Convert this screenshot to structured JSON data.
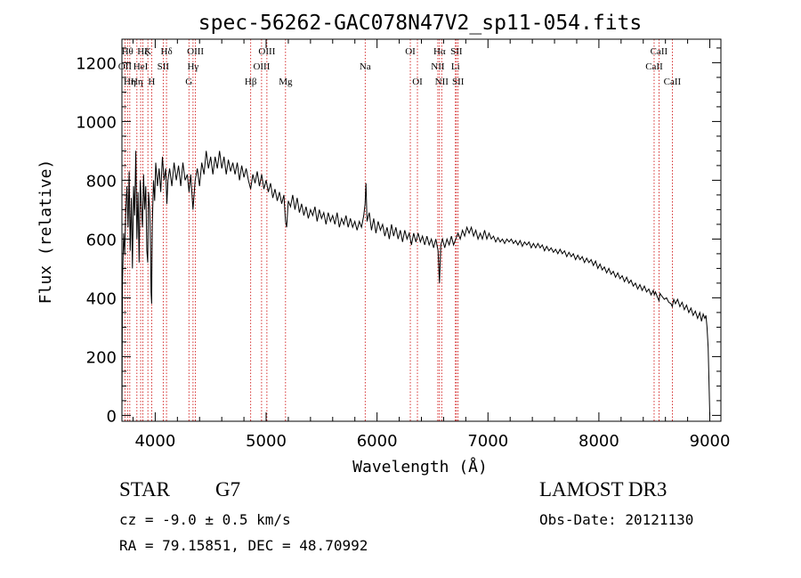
{
  "chart_data": {
    "type": "line",
    "title": "spec-56262-GAC078N47V2_sp11-054.fits",
    "xlabel": "Wavelength (Å)",
    "ylabel": "Flux (relative)",
    "xlim": [
      3700,
      9100
    ],
    "ylim": [
      -20,
      1280
    ],
    "xticks": [
      4000,
      5000,
      6000,
      7000,
      8000,
      9000
    ],
    "yticks": [
      0,
      200,
      400,
      600,
      800,
      1000,
      1200
    ],
    "spectrum": [
      [
        3700,
        0
      ],
      [
        3705,
        450
      ],
      [
        3715,
        620
      ],
      [
        3725,
        550
      ],
      [
        3735,
        700
      ],
      [
        3745,
        780
      ],
      [
        3755,
        640
      ],
      [
        3765,
        830
      ],
      [
        3775,
        560
      ],
      [
        3785,
        740
      ],
      [
        3795,
        500
      ],
      [
        3805,
        780
      ],
      [
        3815,
        680
      ],
      [
        3825,
        900
      ],
      [
        3835,
        600
      ],
      [
        3845,
        760
      ],
      [
        3855,
        520
      ],
      [
        3865,
        800
      ],
      [
        3875,
        720
      ],
      [
        3885,
        640
      ],
      [
        3895,
        820
      ],
      [
        3905,
        700
      ],
      [
        3915,
        780
      ],
      [
        3925,
        560
      ],
      [
        3933,
        520
      ],
      [
        3940,
        760
      ],
      [
        3950,
        700
      ],
      [
        3958,
        560
      ],
      [
        3962,
        420
      ],
      [
        3968,
        380
      ],
      [
        3974,
        650
      ],
      [
        3985,
        800
      ],
      [
        3995,
        730
      ],
      [
        4005,
        860
      ],
      [
        4020,
        780
      ],
      [
        4035,
        840
      ],
      [
        4050,
        760
      ],
      [
        4065,
        880
      ],
      [
        4080,
        800
      ],
      [
        4095,
        840
      ],
      [
        4105,
        720
      ],
      [
        4115,
        800
      ],
      [
        4130,
        840
      ],
      [
        4150,
        780
      ],
      [
        4170,
        860
      ],
      [
        4190,
        800
      ],
      [
        4210,
        850
      ],
      [
        4230,
        780
      ],
      [
        4250,
        860
      ],
      [
        4270,
        800
      ],
      [
        4290,
        820
      ],
      [
        4305,
        760
      ],
      [
        4320,
        820
      ],
      [
        4340,
        700
      ],
      [
        4360,
        800
      ],
      [
        4380,
        840
      ],
      [
        4400,
        780
      ],
      [
        4420,
        860
      ],
      [
        4440,
        820
      ],
      [
        4460,
        900
      ],
      [
        4480,
        840
      ],
      [
        4500,
        880
      ],
      [
        4520,
        820
      ],
      [
        4540,
        880
      ],
      [
        4560,
        840
      ],
      [
        4580,
        900
      ],
      [
        4600,
        840
      ],
      [
        4620,
        880
      ],
      [
        4640,
        820
      ],
      [
        4660,
        870
      ],
      [
        4680,
        830
      ],
      [
        4700,
        860
      ],
      [
        4720,
        820
      ],
      [
        4740,
        860
      ],
      [
        4760,
        800
      ],
      [
        4780,
        850
      ],
      [
        4800,
        810
      ],
      [
        4820,
        840
      ],
      [
        4840,
        800
      ],
      [
        4860,
        770
      ],
      [
        4880,
        820
      ],
      [
        4900,
        790
      ],
      [
        4920,
        830
      ],
      [
        4940,
        780
      ],
      [
        4960,
        820
      ],
      [
        4980,
        770
      ],
      [
        5000,
        800
      ],
      [
        5020,
        760
      ],
      [
        5040,
        790
      ],
      [
        5060,
        740
      ],
      [
        5080,
        770
      ],
      [
        5100,
        730
      ],
      [
        5120,
        760
      ],
      [
        5140,
        720
      ],
      [
        5160,
        750
      ],
      [
        5175,
        660
      ],
      [
        5185,
        640
      ],
      [
        5200,
        730
      ],
      [
        5220,
        710
      ],
      [
        5240,
        750
      ],
      [
        5260,
        700
      ],
      [
        5280,
        740
      ],
      [
        5300,
        690
      ],
      [
        5320,
        720
      ],
      [
        5340,
        680
      ],
      [
        5360,
        710
      ],
      [
        5380,
        670
      ],
      [
        5400,
        700
      ],
      [
        5420,
        680
      ],
      [
        5440,
        710
      ],
      [
        5460,
        660
      ],
      [
        5480,
        700
      ],
      [
        5500,
        670
      ],
      [
        5520,
        690
      ],
      [
        5540,
        650
      ],
      [
        5560,
        690
      ],
      [
        5580,
        660
      ],
      [
        5600,
        680
      ],
      [
        5620,
        650
      ],
      [
        5640,
        690
      ],
      [
        5660,
        640
      ],
      [
        5680,
        670
      ],
      [
        5700,
        650
      ],
      [
        5720,
        680
      ],
      [
        5740,
        640
      ],
      [
        5760,
        670
      ],
      [
        5780,
        640
      ],
      [
        5800,
        660
      ],
      [
        5820,
        630
      ],
      [
        5840,
        660
      ],
      [
        5860,
        640
      ],
      [
        5880,
        680
      ],
      [
        5892,
        720
      ],
      [
        5900,
        790
      ],
      [
        5910,
        660
      ],
      [
        5930,
        690
      ],
      [
        5950,
        630
      ],
      [
        5970,
        670
      ],
      [
        5990,
        620
      ],
      [
        6010,
        660
      ],
      [
        6030,
        630
      ],
      [
        6050,
        650
      ],
      [
        6070,
        610
      ],
      [
        6090,
        640
      ],
      [
        6110,
        600
      ],
      [
        6130,
        650
      ],
      [
        6150,
        610
      ],
      [
        6170,
        640
      ],
      [
        6190,
        600
      ],
      [
        6210,
        630
      ],
      [
        6230,
        590
      ],
      [
        6250,
        630
      ],
      [
        6270,
        600
      ],
      [
        6290,
        620
      ],
      [
        6310,
        580
      ],
      [
        6330,
        620
      ],
      [
        6350,
        590
      ],
      [
        6370,
        620
      ],
      [
        6390,
        590
      ],
      [
        6410,
        610
      ],
      [
        6430,
        580
      ],
      [
        6450,
        610
      ],
      [
        6470,
        580
      ],
      [
        6490,
        600
      ],
      [
        6510,
        570
      ],
      [
        6530,
        600
      ],
      [
        6550,
        560
      ],
      [
        6563,
        450
      ],
      [
        6575,
        580
      ],
      [
        6590,
        600
      ],
      [
        6610,
        570
      ],
      [
        6630,
        600
      ],
      [
        6650,
        580
      ],
      [
        6670,
        610
      ],
      [
        6690,
        580
      ],
      [
        6710,
        600
      ],
      [
        6730,
        620
      ],
      [
        6750,
        600
      ],
      [
        6770,
        630
      ],
      [
        6790,
        610
      ],
      [
        6810,
        640
      ],
      [
        6830,
        620
      ],
      [
        6850,
        640
      ],
      [
        6870,
        610
      ],
      [
        6890,
        630
      ],
      [
        6910,
        600
      ],
      [
        6930,
        620
      ],
      [
        6950,
        600
      ],
      [
        6970,
        630
      ],
      [
        6990,
        600
      ],
      [
        7010,
        620
      ],
      [
        7030,
        600
      ],
      [
        7050,
        610
      ],
      [
        7070,
        590
      ],
      [
        7090,
        605
      ],
      [
        7110,
        590
      ],
      [
        7130,
        600
      ],
      [
        7150,
        585
      ],
      [
        7170,
        600
      ],
      [
        7190,
        590
      ],
      [
        7210,
        600
      ],
      [
        7230,
        585
      ],
      [
        7250,
        595
      ],
      [
        7270,
        580
      ],
      [
        7290,
        595
      ],
      [
        7310,
        575
      ],
      [
        7330,
        590
      ],
      [
        7350,
        580
      ],
      [
        7370,
        590
      ],
      [
        7390,
        570
      ],
      [
        7410,
        585
      ],
      [
        7430,
        570
      ],
      [
        7450,
        585
      ],
      [
        7470,
        570
      ],
      [
        7490,
        580
      ],
      [
        7510,
        560
      ],
      [
        7530,
        575
      ],
      [
        7550,
        560
      ],
      [
        7570,
        570
      ],
      [
        7590,
        555
      ],
      [
        7610,
        565
      ],
      [
        7630,
        550
      ],
      [
        7650,
        565
      ],
      [
        7670,
        550
      ],
      [
        7690,
        560
      ],
      [
        7710,
        540
      ],
      [
        7730,
        555
      ],
      [
        7750,
        540
      ],
      [
        7770,
        550
      ],
      [
        7790,
        530
      ],
      [
        7810,
        545
      ],
      [
        7830,
        530
      ],
      [
        7850,
        540
      ],
      [
        7870,
        520
      ],
      [
        7890,
        535
      ],
      [
        7910,
        520
      ],
      [
        7930,
        530
      ],
      [
        7950,
        510
      ],
      [
        7970,
        525
      ],
      [
        7990,
        500
      ],
      [
        8010,
        515
      ],
      [
        8030,
        495
      ],
      [
        8050,
        505
      ],
      [
        8070,
        485
      ],
      [
        8090,
        500
      ],
      [
        8110,
        480
      ],
      [
        8130,
        490
      ],
      [
        8150,
        470
      ],
      [
        8170,
        485
      ],
      [
        8190,
        465
      ],
      [
        8210,
        475
      ],
      [
        8230,
        455
      ],
      [
        8250,
        470
      ],
      [
        8270,
        450
      ],
      [
        8290,
        460
      ],
      [
        8310,
        440
      ],
      [
        8330,
        450
      ],
      [
        8350,
        430
      ],
      [
        8370,
        445
      ],
      [
        8390,
        425
      ],
      [
        8410,
        440
      ],
      [
        8430,
        420
      ],
      [
        8450,
        430
      ],
      [
        8470,
        410
      ],
      [
        8490,
        425
      ],
      [
        8500,
        410
      ],
      [
        8510,
        420
      ],
      [
        8530,
        400
      ],
      [
        8542,
        390
      ],
      [
        8550,
        415
      ],
      [
        8570,
        405
      ],
      [
        8590,
        395
      ],
      [
        8610,
        400
      ],
      [
        8630,
        385
      ],
      [
        8650,
        380
      ],
      [
        8662,
        370
      ],
      [
        8675,
        395
      ],
      [
        8690,
        380
      ],
      [
        8710,
        395
      ],
      [
        8730,
        370
      ],
      [
        8750,
        385
      ],
      [
        8770,
        360
      ],
      [
        8790,
        375
      ],
      [
        8810,
        350
      ],
      [
        8830,
        365
      ],
      [
        8850,
        340
      ],
      [
        8870,
        355
      ],
      [
        8890,
        330
      ],
      [
        8910,
        350
      ],
      [
        8925,
        320
      ],
      [
        8940,
        345
      ],
      [
        8955,
        330
      ],
      [
        8965,
        340
      ],
      [
        8975,
        300
      ],
      [
        8985,
        230
      ],
      [
        8995,
        80
      ],
      [
        9000,
        0
      ]
    ],
    "lines": [
      {
        "w": 3727,
        "label": "OII",
        "row": 2
      },
      {
        "w": 3750,
        "label": "Hθ",
        "row": 1
      },
      {
        "w": 3771,
        "label": "Hη",
        "row": 3
      },
      {
        "w": 3835,
        "label": "Hη",
        "row": 3
      },
      {
        "w": 3869,
        "label": "HeI",
        "row": 2
      },
      {
        "w": 3889,
        "label": "Hζ",
        "row": 1
      },
      {
        "w": 3934,
        "label": "K",
        "row": 1
      },
      {
        "w": 3968,
        "label": "H",
        "row": 3
      },
      {
        "w": 4072,
        "label": "SII",
        "row": 2
      },
      {
        "w": 4102,
        "label": "Hδ",
        "row": 1
      },
      {
        "w": 4304,
        "label": "G",
        "row": 3
      },
      {
        "w": 4341,
        "label": "Hγ",
        "row": 2
      },
      {
        "w": 4363,
        "label": "OIII",
        "row": 1
      },
      {
        "w": 4861,
        "label": "Hβ",
        "row": 3
      },
      {
        "w": 4959,
        "label": "OIII",
        "row": 2
      },
      {
        "w": 5007,
        "label": "OIII",
        "row": 1
      },
      {
        "w": 5175,
        "label": "Mg",
        "row": 3
      },
      {
        "w": 5893,
        "label": "Na",
        "row": 2
      },
      {
        "w": 6300,
        "label": "OI",
        "row": 1
      },
      {
        "w": 6364,
        "label": "OI",
        "row": 3
      },
      {
        "w": 6548,
        "label": "NII",
        "row": 2
      },
      {
        "w": 6563,
        "label": "Hα",
        "row": 1
      },
      {
        "w": 6583,
        "label": "NII",
        "row": 3
      },
      {
        "w": 6707,
        "label": "Li",
        "row": 2
      },
      {
        "w": 6716,
        "label": "SII",
        "row": 1
      },
      {
        "w": 6731,
        "label": "SII",
        "row": 3
      },
      {
        "w": 8498,
        "label": "CaII",
        "row": 2
      },
      {
        "w": 8542,
        "label": "CaII",
        "row": 1
      },
      {
        "w": 8662,
        "label": "CaII",
        "row": 3
      }
    ],
    "colors": {
      "spectrum": "#000000",
      "lines": "#cc0000",
      "axes": "#000000"
    }
  },
  "info": {
    "class": "STAR",
    "subclass": "G7",
    "survey": "LAMOST DR3",
    "cz": "cz = -9.0 ± 0.5 km/s",
    "obs_date": "Obs-Date: 20121130",
    "radec": "RA =  79.15851, DEC =  48.70992"
  }
}
